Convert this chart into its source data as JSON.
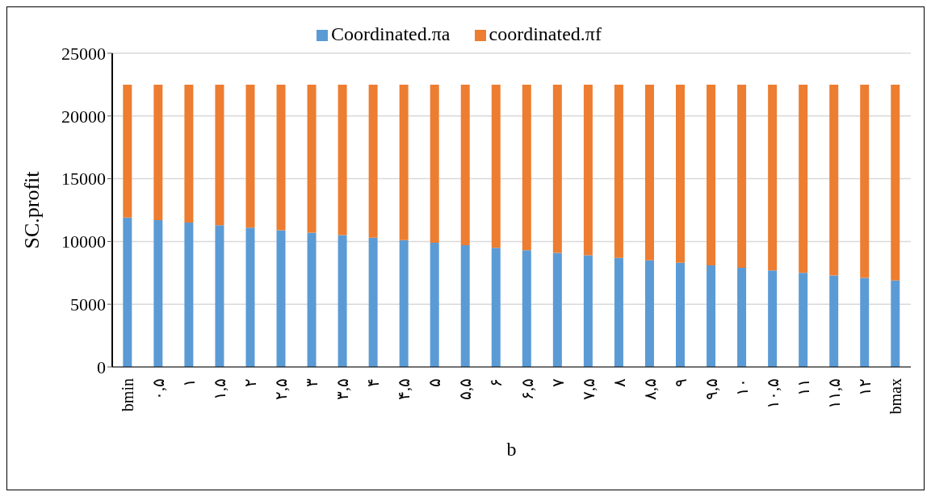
{
  "chart_data": {
    "type": "bar",
    "stacked": true,
    "xlabel": "b",
    "ylabel": "SC.profit",
    "categories": [
      "bmin",
      "۰,۵",
      "۱",
      "۱,۵",
      "۲",
      "۲,۵",
      "۳",
      "۳,۵",
      "۴",
      "۴,۵",
      "۵",
      "۵,۵",
      "۶",
      "۶,۵",
      "۷",
      "۷,۵",
      "۸",
      "۸,۵",
      "۹",
      "۹,۵",
      "۱۰",
      "۱۰,۵",
      "۱۱",
      "۱۱,۵",
      "۱۲",
      "bmax"
    ],
    "series": [
      {
        "name": "Coordinated.πa",
        "color": "#5b9bd5",
        "values": [
          11900,
          11700,
          11500,
          11300,
          11100,
          10900,
          10700,
          10500,
          10300,
          10100,
          9900,
          9700,
          9500,
          9300,
          9100,
          8900,
          8700,
          8500,
          8300,
          8100,
          7900,
          7700,
          7500,
          7300,
          7100,
          6900
        ]
      },
      {
        "name": "coordinated.πf",
        "color": "#ed7d31",
        "values": [
          10600,
          10800,
          11000,
          11200,
          11400,
          11600,
          11800,
          12000,
          12200,
          12400,
          12600,
          12800,
          13000,
          13200,
          13400,
          13600,
          13800,
          14000,
          14200,
          14400,
          14600,
          14800,
          15000,
          15200,
          15400,
          15600
        ]
      }
    ],
    "ylim": [
      0,
      25000
    ],
    "yticks": [
      0,
      5000,
      10000,
      15000,
      20000,
      25000
    ],
    "grid": "y",
    "legend": "top"
  }
}
